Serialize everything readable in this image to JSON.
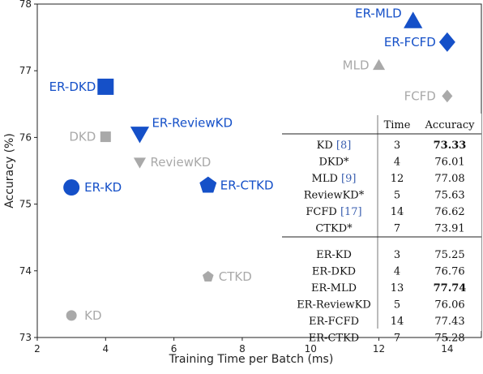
{
  "chart_data": {
    "type": "scatter",
    "xlabel": "Training Time per Batch (ms)",
    "ylabel": "Accuracy (%)",
    "xlim": [
      2,
      15
    ],
    "ylim": [
      73,
      78
    ],
    "xticks": [
      2,
      4,
      6,
      8,
      10,
      12,
      14
    ],
    "yticks": [
      73,
      74,
      75,
      76,
      77,
      78
    ],
    "grid": false,
    "colors": {
      "baseline": "#a9a9a9",
      "er": "#1550c8"
    },
    "points": [
      {
        "label": "KD",
        "x": 3,
        "y": 73.33,
        "group": "baseline",
        "marker": "circle"
      },
      {
        "label": "DKD",
        "x": 4,
        "y": 76.01,
        "group": "baseline",
        "marker": "square"
      },
      {
        "label": "MLD",
        "x": 12,
        "y": 77.08,
        "group": "baseline",
        "marker": "triangle-up"
      },
      {
        "label": "ReviewKD",
        "x": 5,
        "y": 75.63,
        "group": "baseline",
        "marker": "triangle-down"
      },
      {
        "label": "FCFD",
        "x": 14,
        "y": 76.62,
        "group": "baseline",
        "marker": "diamond"
      },
      {
        "label": "CTKD",
        "x": 7,
        "y": 73.91,
        "group": "baseline",
        "marker": "pentagon"
      },
      {
        "label": "ER-KD",
        "x": 3,
        "y": 75.25,
        "group": "er",
        "marker": "circle"
      },
      {
        "label": "ER-DKD",
        "x": 4,
        "y": 76.76,
        "group": "er",
        "marker": "square"
      },
      {
        "label": "ER-MLD",
        "x": 13,
        "y": 77.74,
        "group": "er",
        "marker": "triangle-up"
      },
      {
        "label": "ER-ReviewKD",
        "x": 5,
        "y": 76.06,
        "group": "er",
        "marker": "triangle-down"
      },
      {
        "label": "ER-FCFD",
        "x": 14,
        "y": 77.43,
        "group": "er",
        "marker": "diamond"
      },
      {
        "label": "ER-CTKD",
        "x": 7,
        "y": 75.28,
        "group": "er",
        "marker": "pentagon"
      }
    ],
    "table": {
      "headers": [
        "",
        "Time",
        "Accuracy"
      ],
      "groups": [
        [
          {
            "method": "KD",
            "ref": "[8]",
            "time": "3",
            "acc": "73.33",
            "bold": true
          },
          {
            "method": "DKD*",
            "ref": "",
            "time": "4",
            "acc": "76.01",
            "bold": false
          },
          {
            "method": "MLD",
            "ref": "[9]",
            "time": "12",
            "acc": "77.08",
            "bold": false
          },
          {
            "method": "ReviewKD*",
            "ref": "",
            "time": "5",
            "acc": "75.63",
            "bold": false
          },
          {
            "method": "FCFD",
            "ref": "[17]",
            "time": "14",
            "acc": "76.62",
            "bold": false
          },
          {
            "method": "CTKD*",
            "ref": "",
            "time": "7",
            "acc": "73.91",
            "bold": false
          }
        ],
        [
          {
            "method": "ER-KD",
            "ref": "",
            "time": "3",
            "acc": "75.25",
            "bold": false
          },
          {
            "method": "ER-DKD",
            "ref": "",
            "time": "4",
            "acc": "76.76",
            "bold": false
          },
          {
            "method": "ER-MLD",
            "ref": "",
            "time": "13",
            "acc": "77.74",
            "bold": true
          },
          {
            "method": "ER-ReviewKD",
            "ref": "",
            "time": "5",
            "acc": "76.06",
            "bold": false
          },
          {
            "method": "ER-FCFD",
            "ref": "",
            "time": "14",
            "acc": "77.43",
            "bold": false
          },
          {
            "method": "ER-CTKD",
            "ref": "",
            "time": "7",
            "acc": "75.28",
            "bold": false
          }
        ]
      ]
    }
  }
}
